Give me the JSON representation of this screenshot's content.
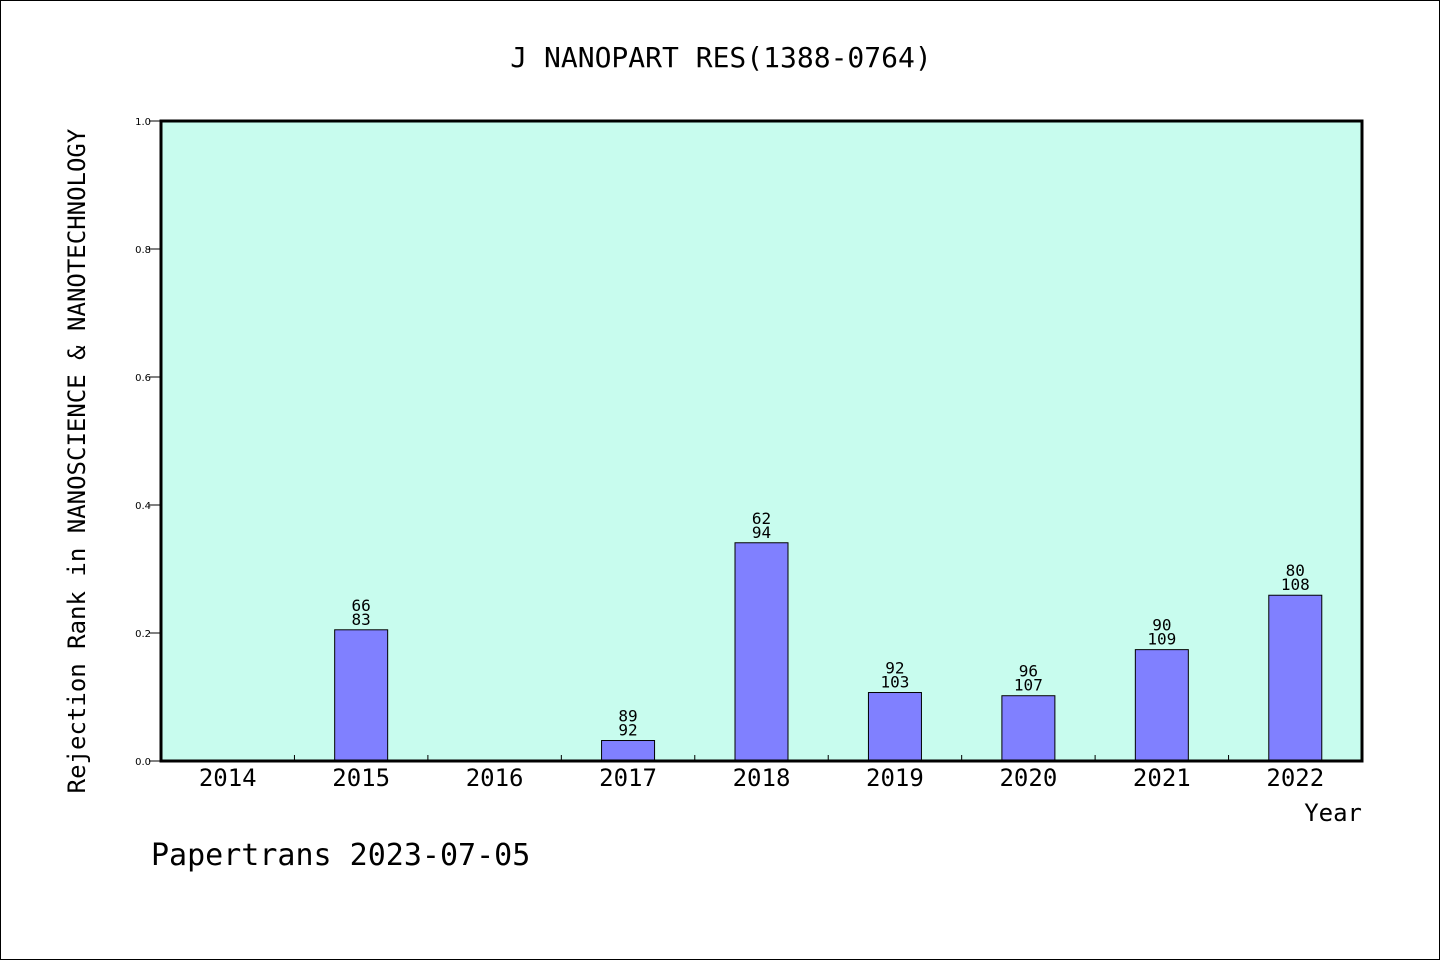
{
  "chart_data": {
    "type": "bar",
    "title": "J NANOPART RES(1388-0764)",
    "ylabel": "Rejection Rank in NANOSCIENCE & NANOTECHNOLOGY",
    "xlabel": "Year",
    "categories": [
      "2014",
      "2015",
      "2016",
      "2017",
      "2018",
      "2019",
      "2020",
      "2021",
      "2022"
    ],
    "values": [
      0,
      0.205,
      0,
      0.032,
      0.341,
      0.107,
      0.102,
      0.174,
      0.259
    ],
    "labels_top": [
      "",
      "66",
      "",
      "89",
      "62",
      "92",
      "96",
      "90",
      "80"
    ],
    "labels_bottom": [
      "",
      "83",
      "",
      "92",
      "94",
      "103",
      "107",
      "109",
      "108"
    ],
    "ylim": [
      0,
      1.0
    ],
    "yticks": [
      "0.0",
      "0.2",
      "0.4",
      "0.6",
      "0.8",
      "1.0"
    ],
    "grid": false,
    "legend": "none",
    "colors": {
      "plot_background": "#c8fcee",
      "bar_fill": "#8080ff",
      "axis": "#000000"
    }
  },
  "footer": {
    "text": "Papertrans 2023-07-05"
  }
}
